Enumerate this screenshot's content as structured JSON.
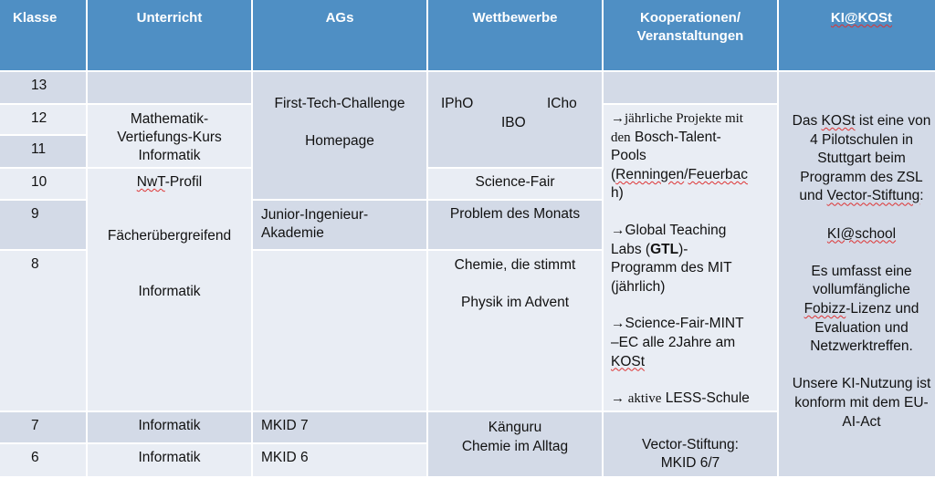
{
  "headers": [
    "Klasse",
    "Unterricht",
    "AGs",
    "Wettbewerbe",
    "Kooperationen/",
    "Veranstaltungen",
    "KI@KOSt"
  ],
  "classes": [
    "13",
    "12",
    "11",
    "10",
    "9",
    "8",
    "7",
    "6"
  ],
  "unterricht": {
    "block1": [
      "Mathematik-",
      "Vertiefungs-Kurs",
      "Informatik"
    ],
    "nwt_pre": "NwT",
    "nwt_post": "-Profil",
    "faecher": "Fächerübergreifend",
    "informatik": "Informatik",
    "row7": "Informatik",
    "row6": "Informatik"
  },
  "ags": {
    "ftc": "First-Tech-Challenge",
    "homepage": "Homepage",
    "junior1": "Junior-Ingenieur-",
    "junior2": "Akademie",
    "mkid7": "MKID 7",
    "mkid6": "MKID 6"
  },
  "wettbewerbe": {
    "ipho": "IPhO",
    "icho": "ICho",
    "ibo": "IBO",
    "sciencefair": "Science-Fair",
    "problem": "Problem des Monats",
    "chemie": "Chemie, die stimmt",
    "physik": "Physik im Advent",
    "kaenguru": "Känguru",
    "alltag": "Chemie im Alltag"
  },
  "kooperationen": {
    "p1_arrow": "→jährliche Projekte mit",
    "p1_den": "den",
    "p1_rest": " Bosch-Talent-",
    "p1_l3": "Pools",
    "p1_l4a": "(",
    "p1_l4b": "Renningen",
    "p1_l4c": "/",
    "p1_l4d": "Feuerbac",
    "p1_l5": "h)",
    "p2_l1": "→Global Teaching",
    "p2_l2a": "Labs (",
    "p2_l2b": "GTL",
    "p2_l2c": ")-",
    "p2_l3": "Programm des MIT",
    "p2_l4": "(jährlich)",
    "p3_l1": "→Science-Fair-MINT",
    "p3_l2": "–EC alle 2Jahre am",
    "p3_l3": "KOSt",
    "p4_arrow": "→ aktive",
    "p4_rest": " LESS-Schule",
    "vector1": "Vector-Stiftung:",
    "vector2": "MKID 6/7"
  },
  "ki": {
    "p1_l1a": "Das ",
    "p1_l1b": "KOSt",
    "p1_l1c": " ist eine von",
    "p1_l2": "4 Pilotschulen in",
    "p1_l3": "Stuttgart beim",
    "p1_l4": "Programm des ZSL",
    "p1_l5a": "und ",
    "p1_l5b": "Vector-Stiftung",
    "p1_l5c": ":",
    "p2": "KI@school",
    "p3_l1": "Es umfasst eine",
    "p3_l2": "vollumfängliche",
    "p3_l3a": "Fobizz",
    "p3_l3b": "-Lizenz und",
    "p3_l4": "Evaluation und",
    "p3_l5": "Netzwerktreffen.",
    "p4_l1": "Unsere KI-Nutzung ist",
    "p4_l2": "konform mit dem EU-",
    "p4_l3": "AI-Act"
  },
  "colors": {
    "header": "#4f8fc4",
    "row_dark": "#d3dae7",
    "row_light": "#e9edf4"
  }
}
